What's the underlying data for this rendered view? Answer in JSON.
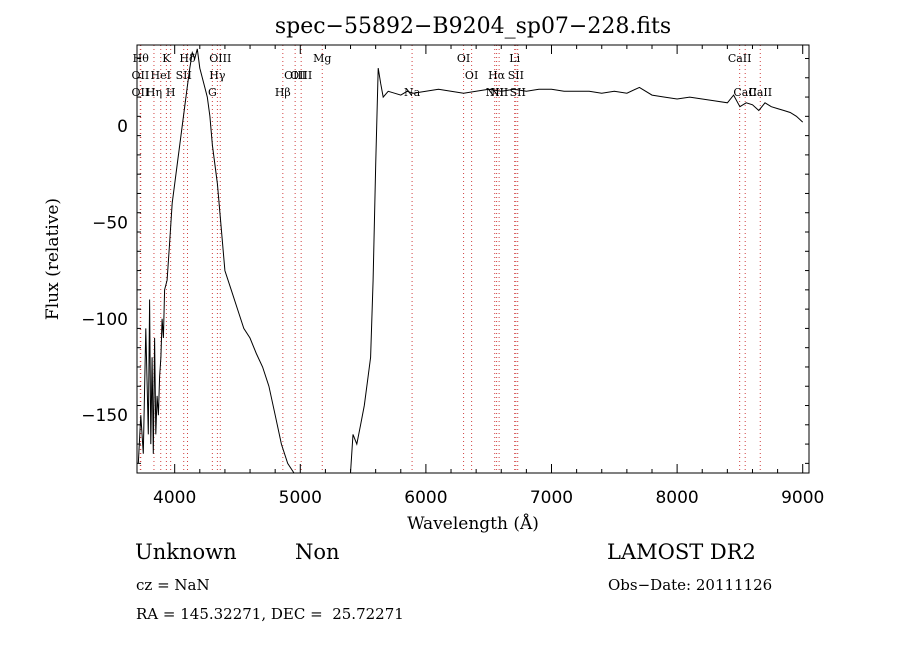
{
  "chart_data": {
    "type": "line",
    "title": "spec−55892−B9204_sp07−228.fits",
    "xlabel": "Wavelength (Å)",
    "ylabel": "Flux (relative)",
    "xlim": [
      3700,
      9050
    ],
    "ylim": [
      -180,
      42
    ],
    "xticks": [
      4000,
      5000,
      6000,
      7000,
      8000,
      9000
    ],
    "yticks": [
      0,
      -50,
      -100,
      -150
    ],
    "ytick_labels": [
      "0",
      "−50",
      "−100",
      "−150"
    ],
    "grid": false,
    "series": [
      {
        "x": [
          3710,
          3730,
          3750,
          3770,
          3790,
          3800,
          3810,
          3820,
          3830,
          3840,
          3850,
          3860,
          3870,
          3880,
          3890,
          3900,
          3910,
          3920,
          3940,
          3960,
          3980,
          4000,
          4020,
          4040,
          4060,
          4080,
          4100,
          4120,
          4140,
          4160,
          4180,
          4200,
          4220,
          4240,
          4260,
          4280,
          4300,
          4320,
          4340,
          4360,
          4380,
          4400,
          4450,
          4500,
          4550,
          4600,
          4650,
          4700,
          4750,
          4800,
          4850,
          4900,
          4950,
          5000,
          5100,
          5200,
          5300,
          5400,
          5420,
          5450,
          5480,
          5510,
          5540,
          5560,
          5580,
          5600,
          5620,
          5640,
          5660,
          5700,
          5750,
          5800,
          5850,
          5900,
          6000,
          6100,
          6200,
          6300,
          6400,
          6500,
          6600,
          6700,
          6800,
          6900,
          7000,
          7100,
          7200,
          7300,
          7400,
          7500,
          7600,
          7700,
          7800,
          7900,
          8000,
          8100,
          8200,
          8300,
          8400,
          8450,
          8500,
          8550,
          8600,
          8650,
          8700,
          8750,
          8800,
          8850,
          8900,
          8950,
          9000
        ],
        "y": [
          -175,
          -150,
          -170,
          -105,
          -160,
          -90,
          -165,
          -120,
          -170,
          -110,
          -160,
          -140,
          -150,
          -130,
          -120,
          -100,
          -110,
          -85,
          -80,
          -60,
          -40,
          -30,
          -20,
          -10,
          0,
          10,
          20,
          30,
          38,
          35,
          40,
          30,
          25,
          20,
          15,
          5,
          -10,
          -20,
          -30,
          -45,
          -60,
          -75,
          -85,
          -95,
          -105,
          -110,
          -118,
          -125,
          -135,
          -150,
          -165,
          -175,
          -180,
          -180,
          -180,
          -180,
          -180,
          -180,
          -160,
          -165,
          -155,
          -145,
          -130,
          -120,
          -80,
          -20,
          30,
          22,
          15,
          18,
          17,
          16,
          18,
          17,
          18,
          19,
          18,
          17,
          18,
          19,
          18,
          19,
          18,
          19,
          19,
          18,
          18,
          18,
          17,
          18,
          17,
          20,
          16,
          15,
          14,
          15,
          14,
          13,
          12,
          16,
          10,
          12,
          11,
          8,
          12,
          10,
          9,
          8,
          7,
          5,
          2
        ]
      }
    ],
    "lines": [
      {
        "x": 3730,
        "label": "Hθ",
        "row": 1
      },
      {
        "x": 3727,
        "label": "OII",
        "row": 2
      },
      {
        "x": 3727,
        "label": "OII",
        "row": 3
      },
      {
        "x": 3835,
        "label": "Hη",
        "row": 3
      },
      {
        "x": 3889,
        "label": "HeI",
        "row": 2
      },
      {
        "x": 3934,
        "label": "K",
        "row": 1
      },
      {
        "x": 3968,
        "label": "H",
        "row": 3
      },
      {
        "x": 4072,
        "label": "SII",
        "row": 2
      },
      {
        "x": 4102,
        "label": "Hδ",
        "row": 1
      },
      {
        "x": 4300,
        "label": "G",
        "row": 3
      },
      {
        "x": 4340,
        "label": "Hγ",
        "row": 2
      },
      {
        "x": 4363,
        "label": "OIII",
        "row": 1
      },
      {
        "x": 4861,
        "label": "Hβ",
        "row": 3
      },
      {
        "x": 4959,
        "label": "OIII",
        "row": 2
      },
      {
        "x": 5007,
        "label": "OIII",
        "row": 2
      },
      {
        "x": 5175,
        "label": "Mg",
        "row": 1
      },
      {
        "x": 5890,
        "label": "Na",
        "row": 3
      },
      {
        "x": 6300,
        "label": "OI",
        "row": 1
      },
      {
        "x": 6364,
        "label": "OI",
        "row": 2
      },
      {
        "x": 6548,
        "label": "NII",
        "row": 3
      },
      {
        "x": 6563,
        "label": "Hα",
        "row": 2
      },
      {
        "x": 6583,
        "label": "NII",
        "row": 3
      },
      {
        "x": 6707,
        "label": "Li",
        "row": 1
      },
      {
        "x": 6716,
        "label": "SII",
        "row": 2
      },
      {
        "x": 6731,
        "label": "SII",
        "row": 3
      },
      {
        "x": 8498,
        "label": "CaII",
        "row": 1
      },
      {
        "x": 8542,
        "label": "CaII",
        "row": 3
      },
      {
        "x": 8662,
        "label": "CaII",
        "row": 3
      }
    ]
  },
  "info": {
    "object_class": "Unknown",
    "subclass": "Non",
    "survey": "LAMOST DR2",
    "redshift": "cz = NaN",
    "obs_date": "Obs−Date: 20111126",
    "coords": "RA = 145.32271, DEC =  25.72271"
  }
}
